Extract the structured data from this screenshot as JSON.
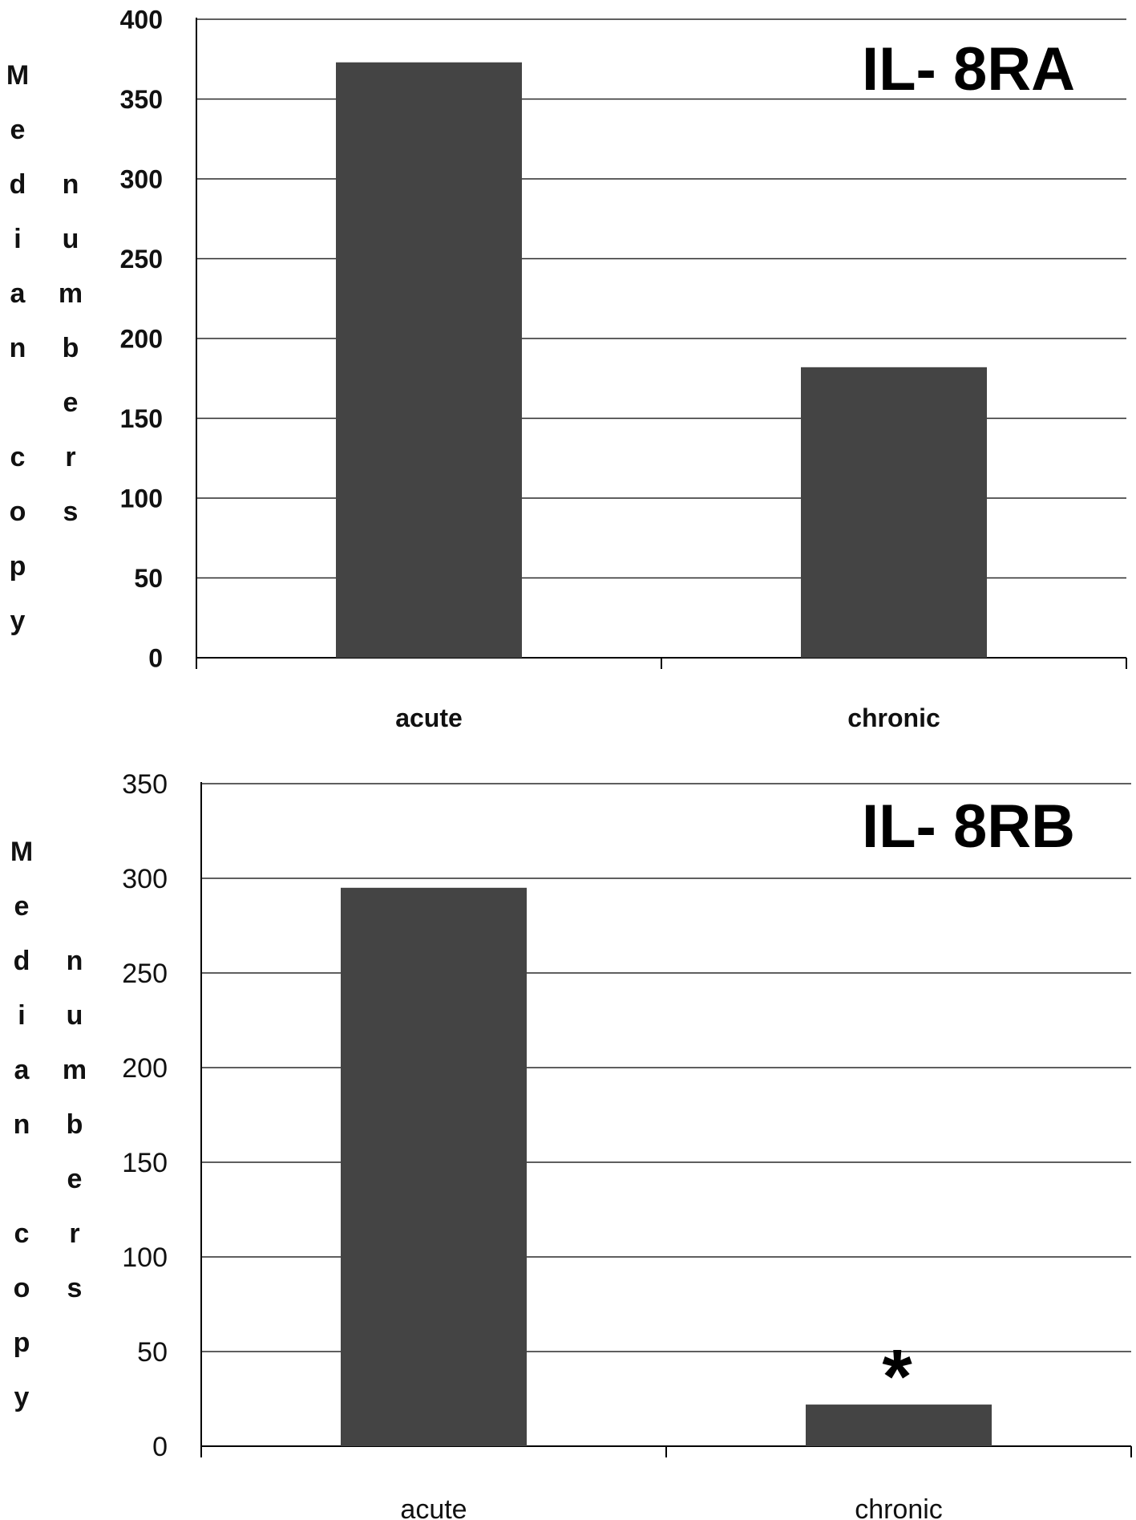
{
  "chart_data": [
    {
      "type": "bar",
      "title": "IL- 8RA",
      "categories": [
        "acute",
        "chronic"
      ],
      "values": [
        373,
        182
      ],
      "ylabel": "Median copy numbers",
      "ylabel_columns": [
        "Median copy",
        "numbers"
      ],
      "yticks": [
        0,
        50,
        100,
        150,
        200,
        250,
        300,
        350,
        400
      ],
      "ylim": [
        0,
        400
      ],
      "grid": true,
      "bar_color": "#444444",
      "annotations": []
    },
    {
      "type": "bar",
      "title": "IL- 8RB",
      "categories": [
        "acute",
        "chronic"
      ],
      "values": [
        295,
        22
      ],
      "ylabel": "Median copy numbers",
      "ylabel_columns": [
        "Median copy",
        "numbers"
      ],
      "yticks": [
        0,
        50,
        100,
        150,
        200,
        250,
        300,
        350
      ],
      "ylim": [
        0,
        350
      ],
      "grid": true,
      "bar_color": "#444444",
      "annotations": [
        {
          "category": "chronic",
          "text": "*"
        }
      ]
    }
  ]
}
